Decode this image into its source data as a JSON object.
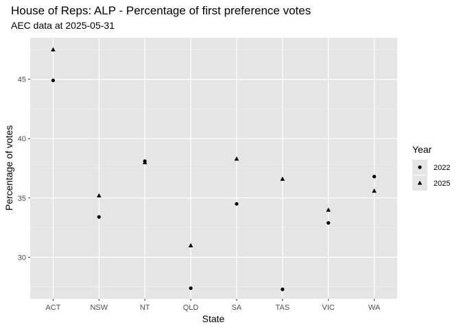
{
  "chart_data": {
    "type": "scatter",
    "title": "House of Reps: ALP - Percentage of first preference votes",
    "subtitle": "AEC data at 2025-05-31",
    "xlabel": "State",
    "ylabel": "Percentage of votes",
    "categories": [
      "ACT",
      "NSW",
      "NT",
      "QLD",
      "SA",
      "TAS",
      "VIC",
      "WA"
    ],
    "y_ticks": [
      30,
      35,
      40,
      45
    ],
    "ylim": [
      26.5,
      48.5
    ],
    "grid": true,
    "panel_background": "#e5e5e5",
    "legend": {
      "title": "Year",
      "position": "right",
      "entries": [
        {
          "label": "2022",
          "shape": "circle"
        },
        {
          "label": "2025",
          "shape": "triangle"
        }
      ]
    },
    "series": [
      {
        "name": "2022",
        "shape": "circle",
        "values": [
          44.9,
          33.4,
          38.1,
          27.4,
          34.5,
          27.3,
          32.9,
          36.8
        ]
      },
      {
        "name": "2025",
        "shape": "triangle",
        "values": [
          47.5,
          35.2,
          38.0,
          31.0,
          38.3,
          36.6,
          34.0,
          35.6
        ]
      }
    ]
  }
}
